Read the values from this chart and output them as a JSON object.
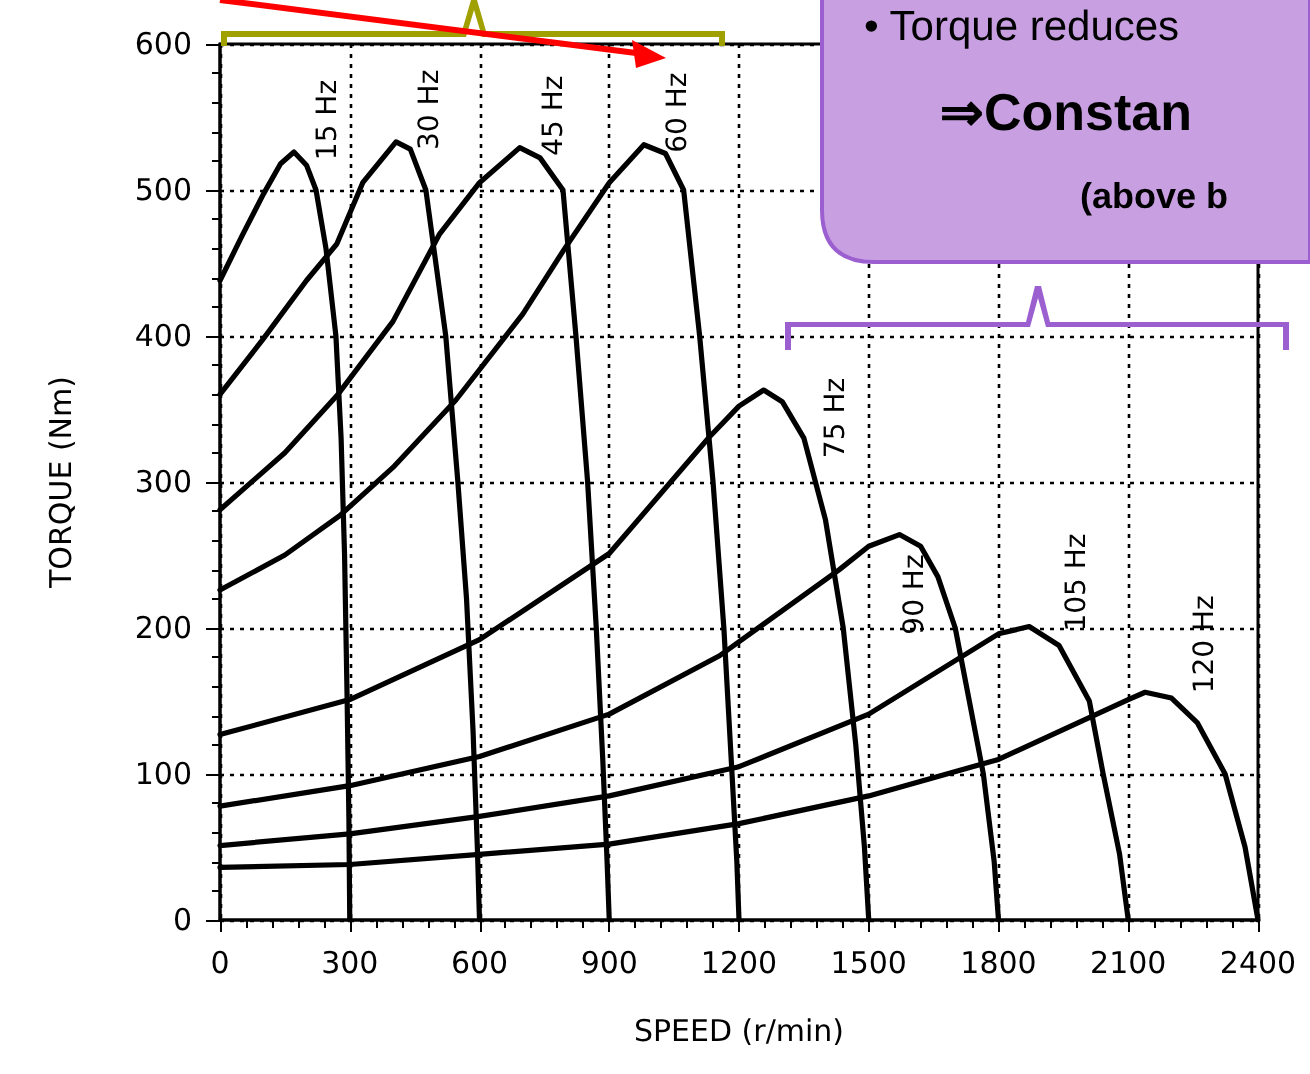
{
  "chart_data": {
    "type": "line",
    "xlabel": "SPEED (r/min)",
    "ylabel": "TORQUE (Nm)",
    "xlim": [
      0,
      2400
    ],
    "xticks": [
      0,
      300,
      600,
      900,
      1200,
      1500,
      1800,
      2100,
      2400
    ],
    "ylim": [
      0,
      600
    ],
    "yticks": [
      0,
      100,
      200,
      300,
      400,
      500,
      600
    ],
    "grid": true,
    "marker": "none",
    "line_style": "solid",
    "annotations": [
      "• Torque reduces",
      "⇒Constan",
      "(above b"
    ],
    "series": [
      {
        "name": "15 Hz",
        "color": "#000000",
        "x": [
          0,
          50,
          100,
          140,
          171,
          200,
          222,
          245,
          268,
          280,
          288,
          294,
          298,
          300
        ],
        "values": [
          438,
          468,
          497,
          518,
          526,
          517,
          500,
          460,
          400,
          330,
          250,
          150,
          70,
          0
        ]
      },
      {
        "name": "30 Hz",
        "color": "#000000",
        "x": [
          0,
          100,
          200,
          270,
          330,
          407,
          440,
          476,
          522,
          550,
          570,
          585,
          595,
          600
        ],
        "values": [
          360,
          398,
          438,
          463,
          505,
          533,
          528,
          500,
          400,
          300,
          220,
          130,
          50,
          0
        ]
      },
      {
        "name": "45 Hz",
        "color": "#000000",
        "x": [
          0,
          150,
          270,
          400,
          508,
          600,
          693,
          740,
          793,
          823,
          850,
          870,
          885,
          895,
          900
        ],
        "values": [
          281,
          320,
          359,
          410,
          470,
          505,
          529,
          522,
          500,
          400,
          300,
          200,
          110,
          40,
          0
        ]
      },
      {
        "name": "60 Hz",
        "color": "#000000",
        "x": [
          0,
          150,
          277,
          400,
          545,
          700,
          795,
          900,
          980,
          1030,
          1072,
          1109,
          1140,
          1165,
          1182,
          1195,
          1200
        ],
        "values": [
          226,
          250,
          277,
          310,
          356,
          415,
          459,
          505,
          531,
          525,
          500,
          400,
          300,
          200,
          110,
          40,
          0
        ]
      },
      {
        "name": "75 Hz",
        "color": "#000000",
        "x": [
          0,
          300,
          600,
          900,
          1132,
          1200,
          1257,
          1300,
          1350,
          1400,
          1441,
          1470,
          1490,
          1500
        ],
        "values": [
          127,
          151,
          192,
          251,
          331,
          352,
          363,
          355,
          330,
          274,
          200,
          120,
          50,
          0
        ]
      },
      {
        "name": "90 Hz",
        "color": "#000000",
        "x": [
          0,
          300,
          600,
          900,
          1155,
          1432,
          1500,
          1571,
          1620,
          1660,
          1700,
          1765,
          1790,
          1800
        ],
        "values": [
          78,
          92,
          112,
          141,
          181,
          240,
          256,
          264,
          256,
          235,
          200,
          100,
          40,
          0
        ]
      },
      {
        "name": "105 Hz",
        "color": "#000000",
        "x": [
          0,
          300,
          600,
          900,
          1200,
          1500,
          1800,
          1871,
          1940,
          2010,
          2042,
          2080,
          2100
        ],
        "values": [
          51,
          59,
          71,
          85,
          105,
          141,
          196,
          201,
          188,
          150,
          100,
          45,
          0
        ]
      },
      {
        "name": "120 Hz",
        "color": "#000000",
        "x": [
          0,
          300,
          600,
          900,
          1200,
          1500,
          1800,
          2100,
          2139,
          2200,
          2260,
          2324,
          2370,
          2400
        ],
        "values": [
          36,
          38,
          45,
          52,
          66,
          85,
          110,
          151,
          156,
          152,
          135,
          100,
          50,
          0
        ]
      }
    ]
  }
}
